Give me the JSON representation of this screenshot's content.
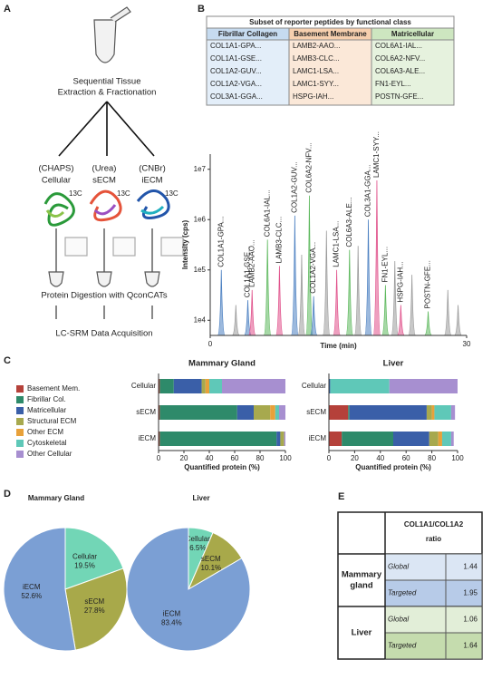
{
  "panel_labels": [
    "A",
    "B",
    "C",
    "D",
    "E"
  ],
  "workflow": {
    "title_lines": [
      "Sequential Tissue",
      "Extraction & Fractionation"
    ],
    "fractions": [
      {
        "reagent": "(CHAPS)",
        "name": "Cellular"
      },
      {
        "reagent": "(Urea)",
        "name": "sECM"
      },
      {
        "reagent": "(CNBr)",
        "name": "iECM"
      }
    ],
    "isotope_label": "13C",
    "steps": [
      "Protein Digestion with QconCATs",
      "LC-SRM Data Acquisition"
    ]
  },
  "peptide_table": {
    "title": "Subset of reporter peptides by functional class",
    "headers": [
      "Fibrillar Collagen",
      "Basement Membrane",
      "Matricellular"
    ],
    "rows": [
      [
        "COL1A1-GPA...",
        "LAMB2-AAO...",
        "COL6A1-IAL..."
      ],
      [
        "COL1A1-GSE...",
        "LAMB3-CLC...",
        "COL6A2-NFV..."
      ],
      [
        "COL1A2-GUV...",
        "LAMC1-LSA...",
        "COL6A3-ALE..."
      ],
      [
        "COL1A2-VGA...",
        "LAMC1-SYY...",
        "FN1-EYL..."
      ],
      [
        "COL3A1-GGA...",
        "HSPG-IAH...",
        "POSTN-GFE..."
      ]
    ]
  },
  "chart_data": [
    {
      "type": "chromatogram",
      "xlabel": "Time (min)",
      "ylabel": "Intensity (cps)",
      "log_y": true,
      "xlim": [
        0,
        30
      ],
      "xticks": [
        0,
        30
      ],
      "ylim": [
        5000,
        20000000
      ],
      "yticks": [
        {
          "value": 10000,
          "label": "1e4"
        },
        {
          "value": 100000,
          "label": "1e5"
        },
        {
          "value": 1000000,
          "label": "1e6"
        },
        {
          "value": 10000000,
          "label": "1e7"
        }
      ],
      "x": [
        1.3,
        3.0,
        4.4,
        4.9,
        6.7,
        8.1,
        9.9,
        10.7,
        11.6,
        12.1,
        13.6,
        14.8,
        16.3,
        17.3,
        18.5,
        19.5,
        20.5,
        21.6,
        22.3,
        23.6,
        25.5,
        27.8,
        29.0
      ],
      "values": [
        100000,
        20000,
        25000,
        40000,
        400000,
        120000,
        1200000,
        200000,
        3000000,
        30000,
        600000,
        100000,
        250000,
        300000,
        1000000,
        6000000,
        50000,
        150000,
        20000,
        80000,
        15000,
        40000,
        20000
      ],
      "labels": [
        "COL1A1-GPA...",
        null,
        "COL1A1-GSE...",
        "LAMB2-AAO...",
        "COL6A1-IAL...",
        "LAMB3-CLC...",
        "COL1A2-GUV...",
        null,
        "COL6A2-NFV...",
        "COL1A2-VGA...",
        null,
        "LAMC1-LSA...",
        "COL6A3-ALE...",
        null,
        "COL3A1-GGA...",
        "LAMC1-SYY...",
        "FN1-EYL...",
        null,
        "HSPG-IAH...",
        null,
        "POSTN-GFE...",
        null,
        null
      ],
      "colors": [
        "#4a7fc1",
        "#9a9a9a",
        "#4a7fc1",
        "#e0508a",
        "#5cb85c",
        "#e0508a",
        "#4a7fc1",
        "#9a9a9a",
        "#5cb85c",
        "#4a7fc1",
        "#9a9a9a",
        "#e0508a",
        "#5cb85c",
        "#9a9a9a",
        "#4a7fc1",
        "#e0508a",
        "#5cb85c",
        "#9a9a9a",
        "#e0508a",
        "#9a9a9a",
        "#5cb85c",
        "#9a9a9a",
        "#9a9a9a"
      ]
    },
    {
      "type": "stacked_bar_panels",
      "xlabel": "Quantified protein (%)",
      "xlim": [
        0,
        100
      ],
      "xticks": [
        0,
        20,
        40,
        60,
        80,
        100
      ],
      "categories": [
        "Cellular",
        "sECM",
        "iECM"
      ],
      "series": [
        {
          "name": "Basement Mem.",
          "color": "#b5413a"
        },
        {
          "name": "Fibrillar Col.",
          "color": "#2e8a6a"
        },
        {
          "name": "Matricellular",
          "color": "#3a5fa8"
        },
        {
          "name": "Structural ECM",
          "color": "#a7a94e"
        },
        {
          "name": "Other ECM",
          "color": "#e8a13a"
        },
        {
          "name": "Cytoskeletal",
          "color": "#5fc8b8"
        },
        {
          "name": "Other Cellular",
          "color": "#a78fd0"
        }
      ],
      "panels": [
        {
          "title": "Mammary  Gland",
          "values": [
            [
              1,
              1,
              1
            ],
            [
              11,
              61,
              92
            ],
            [
              22,
              13,
              3
            ],
            [
              3,
              13,
              3
            ],
            [
              3,
              4,
              0
            ],
            [
              10,
              3,
              0
            ],
            [
              50,
              5,
              1
            ]
          ]
        },
        {
          "title": "Liver",
          "values": [
            [
              0,
              15,
              10
            ],
            [
              0,
              1,
              40
            ],
            [
              1,
              60,
              28
            ],
            [
              0,
              4,
              7
            ],
            [
              0,
              2,
              3
            ],
            [
              46,
              13,
              7
            ],
            [
              53,
              3,
              2
            ]
          ]
        }
      ]
    },
    {
      "type": "pie",
      "title": "Mammary Gland",
      "categories": [
        "Cellular",
        "sECM",
        "iECM"
      ],
      "values": [
        19.5,
        27.8,
        52.6
      ],
      "value_labels": [
        "19.5%",
        "27.8%",
        "52.6%"
      ],
      "colors": [
        "#72d6b6",
        "#a8a94a",
        "#7b9fd4"
      ]
    },
    {
      "type": "pie",
      "title": "Liver",
      "categories": [
        "Cellular",
        "sECM",
        "iECM"
      ],
      "values": [
        6.5,
        10.1,
        83.4
      ],
      "value_labels": [
        "6.5%",
        "10.1%",
        "83.4%"
      ],
      "colors": [
        "#72d6b6",
        "#a8a94a",
        "#7b9fd4"
      ]
    }
  ],
  "ratio_table": {
    "header_lines": [
      "COL1A1/COL1A2",
      "ratio"
    ],
    "groups": [
      {
        "tissue_lines": [
          "Mammary",
          "gland"
        ],
        "rows": [
          {
            "method": "Global",
            "ratio": 1.44
          },
          {
            "method": "Targeted",
            "ratio": 1.95
          }
        ]
      },
      {
        "tissue_lines": [
          "Liver"
        ],
        "rows": [
          {
            "method": "Global",
            "ratio": 1.06
          },
          {
            "method": "Targeted",
            "ratio": 1.64
          }
        ]
      }
    ]
  }
}
